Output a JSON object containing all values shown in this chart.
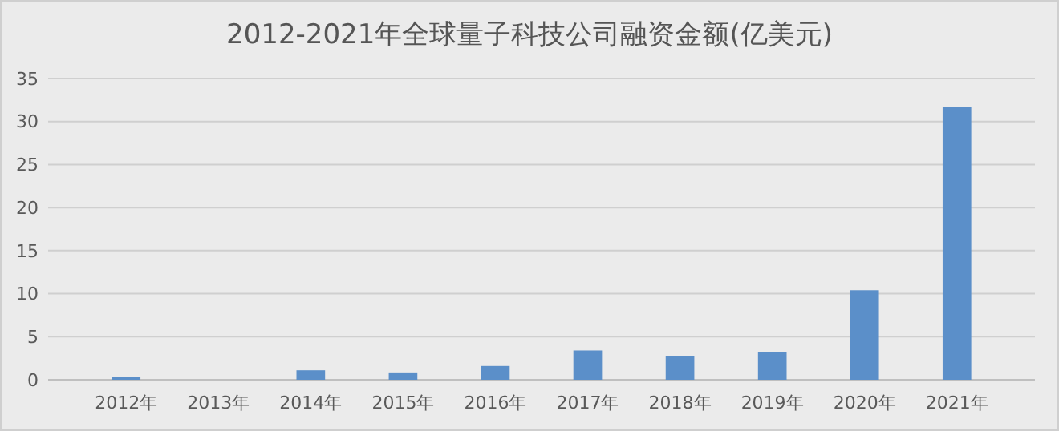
{
  "chart_data": {
    "type": "bar",
    "title": "2012-2021年全球量子科技公司融资金额(亿美元)",
    "categories": [
      "2012年",
      "2013年",
      "2014年",
      "2015年",
      "2016年",
      "2017年",
      "2018年",
      "2019年",
      "2020年",
      "2021年"
    ],
    "values": [
      0.35,
      0,
      1.1,
      0.85,
      1.6,
      3.4,
      2.7,
      3.2,
      10.4,
      31.7
    ],
    "color": "#5b8fc9",
    "ylim": [
      0,
      35
    ],
    "yticks": [
      0,
      5,
      10,
      15,
      20,
      25,
      30,
      35
    ],
    "grid": "y"
  }
}
